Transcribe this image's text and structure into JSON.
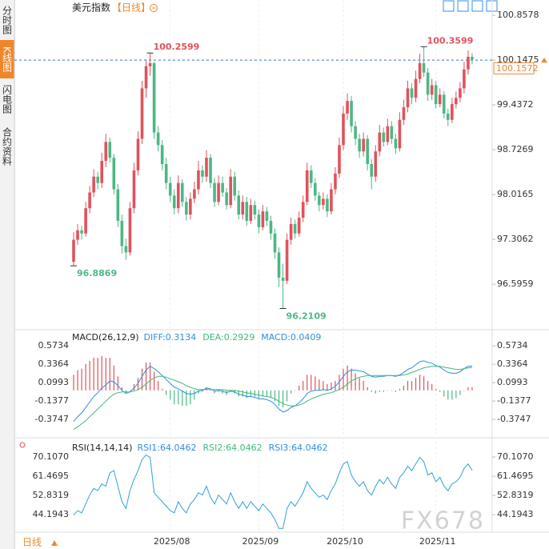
{
  "sidebar_tabs": [
    "分时图",
    "K线图",
    "闪电图",
    "合约资料"
  ],
  "active_tab": 1,
  "footer_period": "日线",
  "watermark": "FX678",
  "chart_data": [
    {
      "type": "candlestick",
      "title": "美元指数",
      "period": "【日线】",
      "up_color": "#e0525c",
      "down_color": "#4cb884",
      "ylim": [
        95.9,
        101.1
      ],
      "yticks": [
        100.8578,
        100.1475,
        99.4372,
        98.7269,
        98.0165,
        97.3062,
        96.5959
      ],
      "ref_line": 100.1475,
      "last_price": 100.1572,
      "annotations": [
        100.2599,
        100.3599,
        96.8869,
        96.2109
      ],
      "categories": [
        null,
        null,
        null,
        null,
        null,
        null,
        null,
        null,
        null,
        null,
        null,
        null,
        null,
        null,
        null,
        null,
        null,
        null,
        null,
        null,
        null,
        null,
        null,
        null,
        "2025/08",
        null,
        null,
        null,
        null,
        null,
        null,
        null,
        null,
        null,
        null,
        null,
        null,
        null,
        null,
        null,
        null,
        null,
        null,
        null,
        null,
        null,
        "2025/09",
        null,
        null,
        null,
        null,
        null,
        null,
        null,
        null,
        null,
        null,
        null,
        null,
        null,
        null,
        null,
        null,
        null,
        null,
        null,
        null,
        "2025/10",
        null,
        null,
        null,
        null,
        null,
        null,
        null,
        null,
        null,
        null,
        null,
        null,
        null,
        null,
        null,
        null,
        null,
        null,
        null,
        null,
        null,
        null,
        "2025/11",
        null,
        null,
        null,
        null,
        null,
        null,
        null,
        null,
        null
      ],
      "candles": [
        [
          96.95,
          97.42,
          96.8869,
          97.3
        ],
        [
          97.3,
          97.55,
          97.22,
          97.45
        ],
        [
          97.45,
          97.52,
          97.3,
          97.4
        ],
        [
          97.4,
          97.9,
          97.35,
          97.8
        ],
        [
          97.8,
          98.15,
          97.72,
          98.05
        ],
        [
          98.05,
          98.42,
          97.98,
          98.3
        ],
        [
          98.3,
          98.38,
          98.1,
          98.2
        ],
        [
          98.2,
          98.68,
          98.12,
          98.55
        ],
        [
          98.55,
          98.98,
          98.45,
          98.85
        ],
        [
          98.85,
          98.92,
          98.52,
          98.6
        ],
        [
          98.6,
          98.66,
          98.02,
          98.1
        ],
        [
          98.1,
          98.18,
          97.5,
          97.6
        ],
        [
          97.6,
          97.7,
          97.08,
          97.2
        ],
        [
          97.2,
          97.32,
          96.98,
          97.1
        ],
        [
          97.1,
          97.9,
          97.05,
          97.8
        ],
        [
          97.8,
          98.52,
          97.72,
          98.4
        ],
        [
          98.4,
          99.02,
          98.32,
          98.9
        ],
        [
          98.9,
          99.82,
          98.82,
          99.7
        ],
        [
          99.7,
          100.15,
          99.55,
          100.05
        ],
        [
          100.05,
          100.2599,
          99.9,
          100.1
        ],
        [
          100.1,
          100.12,
          98.9,
          99.0
        ],
        [
          99.0,
          99.1,
          98.7,
          98.8
        ],
        [
          98.8,
          98.88,
          98.4,
          98.5
        ],
        [
          98.5,
          98.6,
          98.1,
          98.2
        ],
        [
          98.2,
          98.3,
          97.9,
          98.0
        ],
        [
          98.0,
          98.1,
          97.7,
          97.8
        ],
        [
          97.8,
          98.32,
          97.72,
          98.2
        ],
        [
          98.2,
          98.26,
          97.82,
          97.9
        ],
        [
          97.9,
          97.98,
          97.6,
          97.7
        ],
        [
          97.7,
          98.05,
          97.62,
          97.95
        ],
        [
          97.95,
          98.22,
          97.88,
          98.1
        ],
        [
          98.1,
          98.55,
          98.02,
          98.4
        ],
        [
          98.4,
          98.48,
          98.2,
          98.3
        ],
        [
          98.3,
          98.72,
          98.22,
          98.6
        ],
        [
          98.6,
          98.66,
          98.12,
          98.2
        ],
        [
          98.2,
          98.28,
          97.82,
          97.9
        ],
        [
          97.9,
          98.32,
          97.85,
          98.2
        ],
        [
          98.2,
          98.3,
          97.98,
          98.05
        ],
        [
          98.05,
          98.12,
          97.78,
          97.85
        ],
        [
          97.85,
          98.42,
          97.8,
          98.3
        ],
        [
          98.3,
          98.38,
          97.92,
          98.0
        ],
        [
          98.0,
          98.08,
          97.62,
          97.7
        ],
        [
          97.7,
          98.0,
          97.62,
          97.9
        ],
        [
          97.9,
          97.98,
          97.52,
          97.6
        ],
        [
          97.6,
          97.95,
          97.55,
          97.85
        ],
        [
          97.85,
          97.92,
          97.62,
          97.7
        ],
        [
          97.7,
          97.78,
          97.4,
          97.5
        ],
        [
          97.5,
          97.85,
          97.45,
          97.75
        ],
        [
          97.75,
          97.82,
          97.52,
          97.6
        ],
        [
          97.6,
          97.68,
          97.3,
          97.4
        ],
        [
          97.4,
          97.48,
          97.0,
          97.1
        ],
        [
          97.1,
          97.18,
          96.55,
          96.7
        ],
        [
          96.7,
          96.92,
          96.2109,
          96.65
        ],
        [
          96.65,
          97.4,
          96.6,
          97.3
        ],
        [
          97.3,
          97.65,
          97.22,
          97.55
        ],
        [
          97.55,
          97.62,
          97.32,
          97.4
        ],
        [
          97.4,
          97.75,
          97.35,
          97.65
        ],
        [
          97.65,
          98.0,
          97.58,
          97.9
        ],
        [
          97.9,
          98.52,
          97.85,
          98.4
        ],
        [
          98.4,
          98.48,
          98.12,
          98.2
        ],
        [
          98.2,
          98.28,
          97.92,
          98.0
        ],
        [
          98.0,
          98.06,
          97.75,
          97.85
        ],
        [
          97.85,
          98.05,
          97.78,
          97.95
        ],
        [
          97.95,
          98.02,
          97.66,
          97.75
        ],
        [
          97.75,
          98.2,
          97.7,
          98.1
        ],
        [
          98.1,
          98.45,
          98.02,
          98.35
        ],
        [
          98.35,
          98.92,
          98.28,
          98.8
        ],
        [
          98.8,
          99.42,
          98.72,
          99.3
        ],
        [
          99.3,
          99.62,
          99.2,
          99.5
        ],
        [
          99.5,
          99.58,
          99.0,
          99.1
        ],
        [
          99.1,
          99.18,
          98.8,
          98.9
        ],
        [
          98.9,
          98.98,
          98.6,
          98.7
        ],
        [
          98.7,
          99.0,
          98.62,
          98.9
        ],
        [
          98.9,
          98.96,
          98.4,
          98.5
        ],
        [
          98.5,
          98.58,
          98.1,
          98.3
        ],
        [
          98.3,
          98.8,
          98.22,
          98.7
        ],
        [
          98.7,
          99.12,
          98.62,
          99.0
        ],
        [
          99.0,
          99.08,
          98.78,
          98.85
        ],
        [
          98.85,
          99.22,
          98.8,
          99.1
        ],
        [
          99.1,
          99.18,
          98.82,
          98.9
        ],
        [
          98.9,
          98.98,
          98.66,
          98.75
        ],
        [
          98.75,
          99.32,
          98.7,
          99.2
        ],
        [
          99.2,
          99.52,
          99.12,
          99.4
        ],
        [
          99.4,
          99.82,
          99.32,
          99.7
        ],
        [
          99.7,
          99.78,
          99.45,
          99.55
        ],
        [
          99.55,
          99.98,
          99.48,
          99.85
        ],
        [
          99.85,
          100.25,
          99.78,
          100.1
        ],
        [
          100.1,
          100.3599,
          99.88,
          99.95
        ],
        [
          99.95,
          100.02,
          99.5,
          99.6
        ],
        [
          99.6,
          99.85,
          99.52,
          99.75
        ],
        [
          99.75,
          99.82,
          99.38,
          99.45
        ],
        [
          99.45,
          99.7,
          99.4,
          99.6
        ],
        [
          99.6,
          99.66,
          99.22,
          99.3
        ],
        [
          99.3,
          99.38,
          99.1,
          99.2
        ],
        [
          99.2,
          99.55,
          99.15,
          99.45
        ],
        [
          99.45,
          99.65,
          99.38,
          99.55
        ],
        [
          99.55,
          99.8,
          99.48,
          99.7
        ],
        [
          99.7,
          100.12,
          99.62,
          100.0
        ],
        [
          100.0,
          100.3,
          99.92,
          100.2
        ],
        [
          100.2,
          100.26,
          100.08,
          100.1572
        ]
      ]
    },
    {
      "type": "macd",
      "title": "MACD(26,12,9)",
      "ylim": [
        -0.59,
        0.75
      ],
      "yticks": [
        0.5734,
        0.3364,
        0.0993,
        -0.1377,
        -0.3747
      ],
      "legend": [
        {
          "text": "DIFF:0.3134",
          "color": "#2f8fe0"
        },
        {
          "text": "DEA:0.2929",
          "color": "#3dbb7a"
        },
        {
          "text": "MACD:0.0409",
          "color": "#2f8fe0"
        }
      ],
      "up_color": "#e0525c",
      "down_color": "#4cb884",
      "series": [
        {
          "name": "DIFF",
          "color": "#2f8fe0",
          "values": [
            -0.4,
            -0.34,
            -0.29,
            -0.22,
            -0.15,
            -0.08,
            -0.03,
            0.03,
            0.07,
            0.12,
            0.11,
            0.06,
            0.0,
            -0.04,
            -0.02,
            0.03,
            0.09,
            0.18,
            0.26,
            0.31,
            0.28,
            0.24,
            0.19,
            0.14,
            0.09,
            0.04,
            0.02,
            -0.01,
            -0.04,
            -0.05,
            -0.04,
            -0.01,
            0.0,
            0.03,
            0.02,
            -0.01,
            0.0,
            -0.01,
            -0.03,
            -0.01,
            -0.02,
            -0.05,
            -0.06,
            -0.08,
            -0.08,
            -0.09,
            -0.11,
            -0.11,
            -0.12,
            -0.14,
            -0.18,
            -0.24,
            -0.28,
            -0.26,
            -0.22,
            -0.2,
            -0.16,
            -0.11,
            -0.04,
            -0.01,
            0.0,
            0.0,
            0.01,
            0.0,
            0.02,
            0.05,
            0.11,
            0.18,
            0.24,
            0.26,
            0.26,
            0.25,
            0.24,
            0.21,
            0.18,
            0.17,
            0.18,
            0.18,
            0.19,
            0.19,
            0.18,
            0.2,
            0.23,
            0.27,
            0.29,
            0.33,
            0.37,
            0.38,
            0.36,
            0.35,
            0.32,
            0.3,
            0.26,
            0.23,
            0.22,
            0.22,
            0.24,
            0.28,
            0.31,
            0.3134
          ]
        },
        {
          "name": "DEA",
          "color": "#3dbb7a",
          "values": [
            -0.5,
            -0.47,
            -0.43,
            -0.39,
            -0.34,
            -0.29,
            -0.24,
            -0.19,
            -0.14,
            -0.09,
            -0.05,
            -0.03,
            -0.02,
            -0.02,
            -0.02,
            -0.01,
            0.01,
            0.04,
            0.08,
            0.13,
            0.16,
            0.18,
            0.18,
            0.17,
            0.15,
            0.13,
            0.11,
            0.09,
            0.06,
            0.04,
            0.02,
            0.01,
            0.01,
            0.01,
            0.01,
            0.01,
            0.01,
            0.01,
            0.0,
            0.0,
            0.0,
            -0.01,
            -0.02,
            -0.03,
            -0.04,
            -0.05,
            -0.06,
            -0.07,
            -0.08,
            -0.09,
            -0.11,
            -0.14,
            -0.17,
            -0.19,
            -0.2,
            -0.2,
            -0.19,
            -0.17,
            -0.14,
            -0.11,
            -0.09,
            -0.07,
            -0.05,
            -0.04,
            -0.03,
            -0.01,
            0.01,
            0.04,
            0.08,
            0.12,
            0.15,
            0.17,
            0.18,
            0.19,
            0.19,
            0.19,
            0.19,
            0.19,
            0.19,
            0.19,
            0.19,
            0.19,
            0.2,
            0.21,
            0.23,
            0.25,
            0.27,
            0.29,
            0.3,
            0.31,
            0.31,
            0.31,
            0.3,
            0.29,
            0.28,
            0.27,
            0.27,
            0.28,
            0.29,
            0.2929
          ]
        },
        {
          "name": "MACD",
          "values": [
            0.2,
            0.26,
            0.28,
            0.34,
            0.38,
            0.42,
            0.42,
            0.44,
            0.42,
            0.42,
            0.32,
            0.18,
            0.04,
            -0.04,
            0.0,
            0.08,
            0.16,
            0.28,
            0.36,
            0.36,
            0.24,
            0.12,
            0.02,
            -0.06,
            -0.12,
            -0.18,
            -0.18,
            -0.2,
            -0.2,
            -0.18,
            -0.12,
            -0.04,
            -0.02,
            0.04,
            0.02,
            -0.04,
            -0.02,
            -0.04,
            -0.06,
            -0.02,
            -0.04,
            -0.08,
            -0.08,
            -0.1,
            -0.08,
            -0.08,
            -0.1,
            -0.08,
            -0.08,
            -0.1,
            -0.14,
            -0.2,
            -0.22,
            -0.14,
            -0.04,
            0.0,
            0.06,
            0.12,
            0.2,
            0.2,
            0.18,
            0.14,
            0.12,
            0.08,
            0.1,
            0.12,
            0.2,
            0.28,
            0.32,
            0.28,
            0.22,
            0.16,
            0.12,
            0.04,
            -0.02,
            -0.04,
            -0.02,
            -0.02,
            0.0,
            0.0,
            -0.02,
            0.02,
            0.06,
            0.12,
            0.12,
            0.16,
            0.2,
            0.18,
            0.12,
            0.08,
            0.02,
            -0.02,
            -0.08,
            -0.12,
            -0.12,
            -0.1,
            -0.06,
            0.0,
            0.04,
            0.0409
          ]
        }
      ]
    },
    {
      "type": "line",
      "title": "RSI(14,14,14)",
      "ylim": [
        36.3,
        77.7
      ],
      "yticks": [
        {
          "value": 70.107,
          "label": "70.1070"
        },
        61.4695,
        52.8319,
        44.1943
      ],
      "legend": [
        {
          "text": "RSI1:64.0462",
          "color": "#2f8fe0"
        },
        {
          "text": "RSI2:64.0462",
          "color": "#3dbb7a"
        },
        {
          "text": "RSI3:64.0462",
          "color": "#2f8fe0"
        }
      ],
      "series": [
        {
          "name": "RSI",
          "color": "#2f9fd8",
          "values": [
            44,
            46,
            45,
            49,
            53,
            56,
            55,
            58,
            57,
            63,
            64,
            57,
            50,
            47,
            55,
            60,
            64,
            69,
            71,
            70,
            54,
            52,
            50,
            48,
            46,
            45,
            50,
            47,
            45,
            49,
            51,
            54,
            53,
            57,
            52,
            49,
            53,
            51,
            49,
            54,
            50,
            47,
            50,
            47,
            50,
            48,
            46,
            49,
            47,
            45,
            42,
            38,
            38,
            47,
            50,
            48,
            51,
            54,
            59,
            56,
            54,
            52,
            53,
            51,
            55,
            58,
            63,
            67,
            68,
            62,
            59,
            57,
            59,
            55,
            53,
            57,
            60,
            58,
            61,
            58,
            56,
            61,
            63,
            66,
            64,
            67,
            70,
            68,
            62,
            63,
            59,
            61,
            57,
            55,
            58,
            59,
            61,
            65,
            67,
            64.0462
          ]
        }
      ]
    }
  ]
}
